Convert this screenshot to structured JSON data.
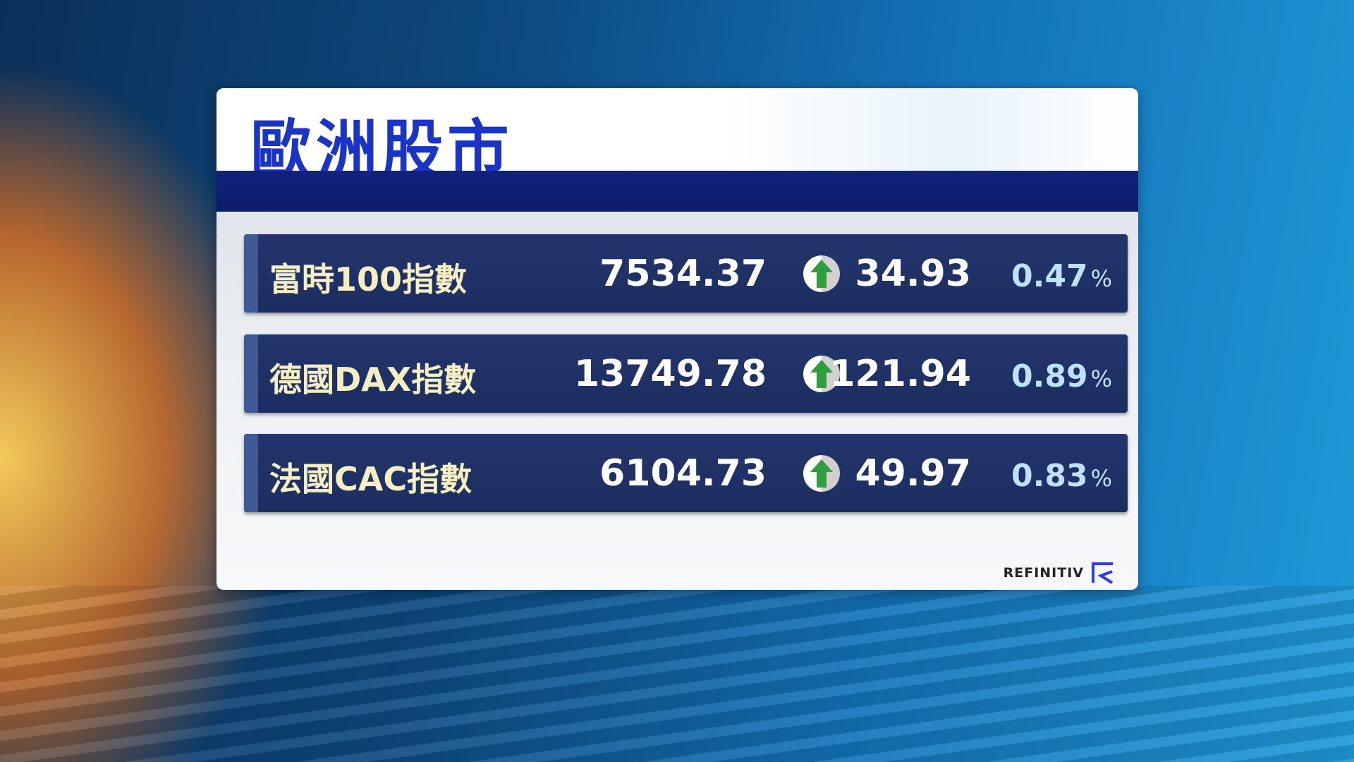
{
  "title": "歐洲股市",
  "rows": [
    {
      "name": "富時100指數",
      "value": "7534.37",
      "direction": "up",
      "change": "34.93",
      "percent": "0.47",
      "percent_sign": "%"
    },
    {
      "name": "德國DAX指數",
      "value": "13749.78",
      "direction": "up",
      "change": "121.94",
      "percent": "0.89",
      "percent_sign": "%"
    },
    {
      "name": "法國CAC指數",
      "value": "6104.73",
      "direction": "up",
      "change": "49.97",
      "percent": "0.83",
      "percent_sign": "%"
    }
  ],
  "source_logo": "REFINITIV",
  "colors": {
    "title": "#1a34c8",
    "band": "#11227a",
    "row": "#1f3066",
    "up_arrow": "#2e9e3e",
    "percent": "#bfe0ff"
  }
}
